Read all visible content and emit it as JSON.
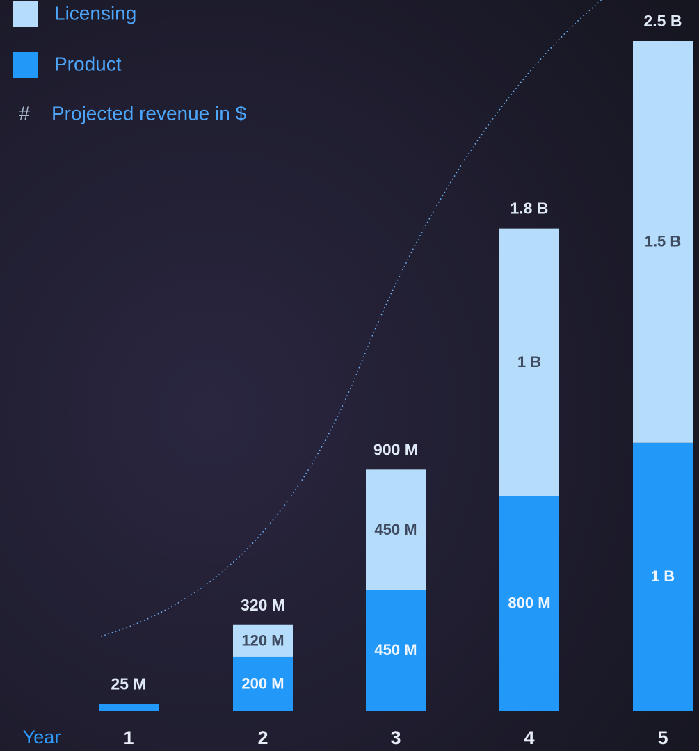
{
  "chart_data": {
    "type": "bar",
    "stacked": true,
    "subtitle": {
      "icon": "#",
      "text": "Projected revenue in $"
    },
    "x_label": "Year",
    "categories": [
      "1",
      "2",
      "3",
      "4",
      "5"
    ],
    "series": [
      {
        "name": "Product",
        "color": "#2299f8",
        "values": [
          25000000,
          200000000,
          450000000,
          800000000,
          1000000000
        ],
        "value_labels": [
          null,
          "200 M",
          "450 M",
          "800 M",
          "1 B"
        ]
      },
      {
        "name": "Licensing",
        "color": "#b5dcfb",
        "values": [
          null,
          120000000,
          450000000,
          1000000000,
          1500000000
        ],
        "value_labels": [
          null,
          "120 M",
          "450 M",
          "1 B",
          "1.5 B"
        ]
      }
    ],
    "totals": [
      25000000,
      320000000,
      900000000,
      1800000000,
      2500000000
    ],
    "total_labels": [
      "25 M",
      "320 M",
      "900 M",
      "1.8 B",
      "2.5 B"
    ]
  }
}
